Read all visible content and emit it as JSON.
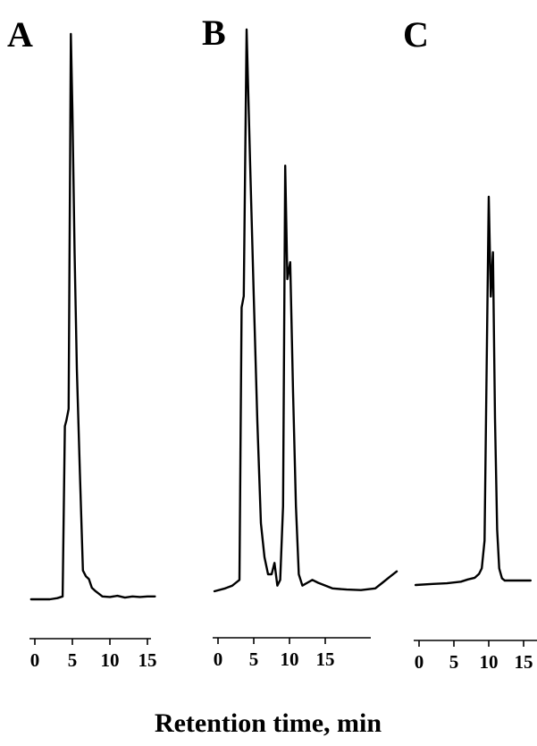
{
  "chart_data": [
    {
      "type": "line",
      "title": "A",
      "xlabel": "Retention time, min",
      "ylabel": "",
      "xlim": [
        -0.5,
        16
      ],
      "ylim": [
        0,
        100
      ],
      "grid": false,
      "xticks": [
        0,
        5,
        10,
        15
      ],
      "series": [
        {
          "x": [
            -0.5,
            1,
            2,
            3,
            3.7,
            4.0,
            4.2,
            4.5,
            4.8,
            5.0,
            5.3,
            5.6,
            6.0,
            6.4,
            6.8,
            7.2,
            7.6,
            8.0,
            8.5,
            9.0,
            10,
            11,
            12,
            13,
            14,
            15,
            16
          ],
          "y": [
            0,
            0,
            0,
            0.2,
            0.5,
            30,
            31,
            33,
            98,
            85,
            60,
            40,
            22,
            5,
            4,
            3.5,
            2,
            1.5,
            1,
            0.5,
            0.4,
            0.6,
            0.3,
            0.5,
            0.4,
            0.5,
            0.5
          ]
        }
      ]
    },
    {
      "type": "line",
      "title": "B",
      "xlabel": "Retention time, min",
      "ylabel": "",
      "xlim": [
        -0.5,
        25
      ],
      "ylim": [
        0,
        100
      ],
      "grid": false,
      "xticks": [
        0,
        5,
        10,
        15
      ],
      "series": [
        {
          "x": [
            -0.5,
            1,
            2,
            2.5,
            3.0,
            3.3,
            3.6,
            4.0,
            4.5,
            5.0,
            5.5,
            6.0,
            6.5,
            7.0,
            7.5,
            7.9,
            8.3,
            8.7,
            9.1,
            9.4,
            9.7,
            10.1,
            10.5,
            10.9,
            11.3,
            11.8,
            12.5,
            13.2,
            14,
            16,
            18,
            20,
            22,
            23,
            24,
            25
          ],
          "y": [
            0,
            0.5,
            1,
            1.5,
            2,
            50,
            52,
            99,
            75,
            52,
            30,
            12,
            6,
            3,
            3,
            5,
            1,
            2,
            15,
            75,
            55,
            58,
            35,
            15,
            3,
            1,
            1.5,
            2,
            1.5,
            0.5,
            0.3,
            0.2,
            0.5,
            1.5,
            2.5,
            3.5
          ]
        }
      ]
    },
    {
      "type": "line",
      "title": "C",
      "xlabel": "Retention time, min",
      "ylabel": "",
      "xlim": [
        -0.5,
        16
      ],
      "ylim": [
        0,
        100
      ],
      "grid": false,
      "xticks": [
        0,
        5,
        10,
        15
      ],
      "series": [
        {
          "x": [
            -0.5,
            2,
            4,
            6,
            7,
            8,
            8.6,
            9.0,
            9.4,
            9.7,
            10.0,
            10.3,
            10.6,
            10.9,
            11.2,
            11.5,
            11.9,
            12.3,
            13,
            14,
            15,
            16
          ],
          "y": [
            0,
            0.2,
            0.3,
            0.6,
            1,
            1.3,
            2,
            3,
            8,
            40,
            70,
            52,
            60,
            30,
            10,
            3,
            1.2,
            0.8,
            0.8,
            0.8,
            0.8,
            0.8
          ]
        }
      ]
    }
  ]
}
